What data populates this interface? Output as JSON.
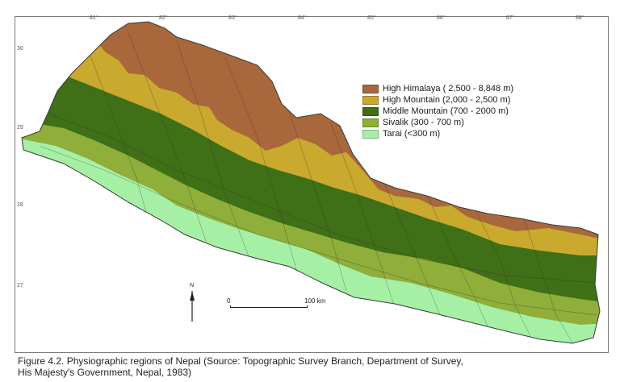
{
  "caption": {
    "line1": "Figure 4.2. Physiographic regions of Nepal (Source: Topographic Survey Branch, Department of Survey,",
    "line2": "His Majesty's Government, Nepal, 1983)"
  },
  "legend": [
    {
      "label": "High Himalaya ( 2,500 - 8,848 m)",
      "color": "#a8683c"
    },
    {
      "label": "High Mountain (2,000 - 2,500 m)",
      "color": "#c9a92e"
    },
    {
      "label": "Middle Mountain (700 - 2000 m)",
      "color": "#3f6f16"
    },
    {
      "label": "Sivalik (300 - 700 m)",
      "color": "#8fae3a"
    },
    {
      "label": "Tarai (<300 m)",
      "color": "#a6f0a6"
    }
  ],
  "longitude_ticks": [
    "81°",
    "82°",
    "83°",
    "84°",
    "85°",
    "86°",
    "87°",
    "88°"
  ],
  "latitude_ticks": [
    "30",
    "29",
    "28",
    "27"
  ],
  "scale": {
    "start": "0",
    "end": "100 km"
  },
  "north_label": "N",
  "colors": {
    "border": "#7a7a7a",
    "district_lines": "#2d2d2d"
  }
}
